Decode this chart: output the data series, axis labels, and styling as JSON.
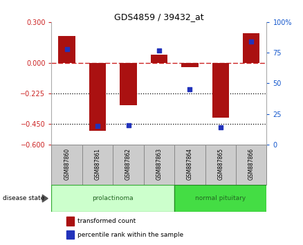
{
  "title": "GDS4859 / 39432_at",
  "samples": [
    "GSM887860",
    "GSM887861",
    "GSM887862",
    "GSM887863",
    "GSM887864",
    "GSM887865",
    "GSM887866"
  ],
  "transformed_count": [
    0.2,
    -0.5,
    -0.31,
    0.06,
    -0.03,
    -0.4,
    0.22
  ],
  "percentile_rank_pct": [
    78,
    15,
    16,
    77,
    45,
    14,
    84
  ],
  "ylim_left": [
    -0.6,
    0.3
  ],
  "ylim_right": [
    0,
    100
  ],
  "yticks_left": [
    0.3,
    0,
    -0.225,
    -0.45,
    -0.6
  ],
  "yticks_right": [
    100,
    75,
    50,
    25,
    0
  ],
  "hlines_dotted": [
    -0.225,
    -0.45
  ],
  "bar_color": "#aa1111",
  "dot_color": "#2233bb",
  "disease_groups": [
    {
      "label": "prolactinoma",
      "start": 0,
      "end": 3,
      "color_face": "#ccffcc",
      "color_edge": "#33aa33"
    },
    {
      "label": "normal pituitary",
      "start": 4,
      "end": 6,
      "color_face": "#44dd44",
      "color_edge": "#228822"
    }
  ],
  "disease_state_label": "disease state",
  "legend_items": [
    {
      "label": "transformed count",
      "color": "#aa1111"
    },
    {
      "label": "percentile rank within the sample",
      "color": "#2233bb"
    }
  ],
  "zero_line_color": "#cc2222",
  "bar_width": 0.55,
  "dot_size": 22
}
